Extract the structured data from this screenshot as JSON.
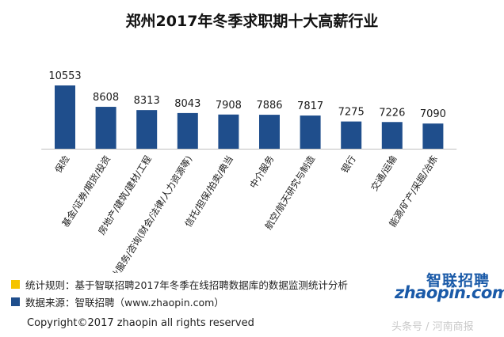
{
  "title": "郑州2017年冬季求职期十大高薪行业",
  "chart_data": {
    "type": "bar",
    "title": "郑州2017年冬季求职期十大高薪行业",
    "categories": [
      "保险",
      "基金/证券/期货/投资",
      "房地产/建筑/建材/工程",
      "专业服务/咨询(财会/法律/人力资源等)",
      "信托/担保/拍卖/典当",
      "中介服务",
      "航空/航天研究与制造",
      "银行",
      "交通/运输",
      "能源/矿产/采掘/冶炼"
    ],
    "values": [
      10553,
      8608,
      8313,
      8043,
      7908,
      7886,
      7817,
      7275,
      7226,
      7090
    ],
    "ylim": [
      4800,
      10553
    ],
    "grid": false,
    "bar_color": "#1f4e8c"
  },
  "notes": [
    {
      "text": "统计规则：基于智联招聘2017年冬季在线招聘数据库的数据监测统计分析",
      "color": "#f5c400"
    },
    {
      "text": "数据来源：智联招聘（www.zhaopin.com）",
      "color": "#1f4e8c"
    }
  ],
  "copyright": "Copyright©2017 zhaopin all rights reserved",
  "logo": {
    "cn": "智联招聘",
    "en": "zhaopin.com"
  },
  "watermark": "头条号 / 河南商报"
}
